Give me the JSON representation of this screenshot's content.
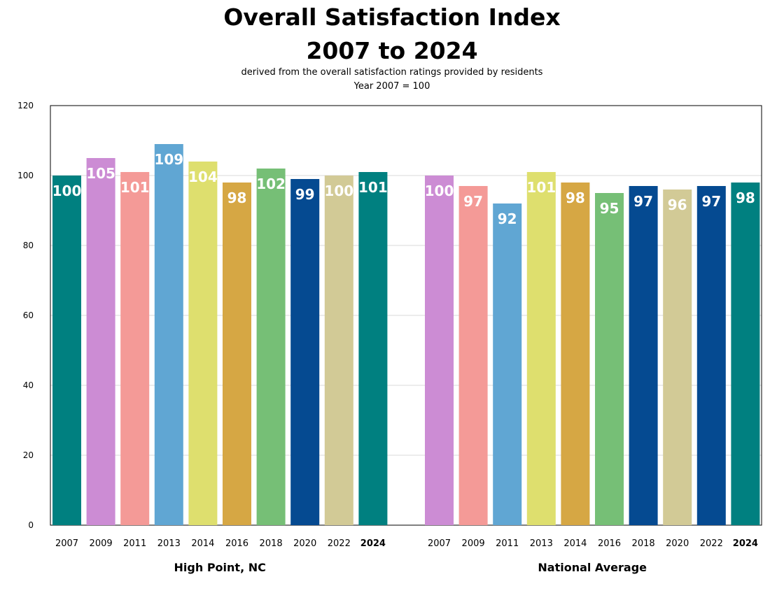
{
  "title_line1": "Overall Satisfaction Index",
  "title_line2": "2007 to 2024",
  "subtitle_line1": "derived from the overall satisfaction ratings provided by residents",
  "subtitle_line2": "Year 2007 = 100",
  "chart_data": {
    "type": "bar",
    "ylim": [
      0,
      120
    ],
    "yticks": [
      0,
      20,
      40,
      60,
      80,
      100,
      120
    ],
    "grid": true,
    "groups": [
      {
        "name": "High Point, NC",
        "categories": [
          "2007",
          "2009",
          "2011",
          "2013",
          "2014",
          "2016",
          "2018",
          "2020",
          "2022",
          "2024"
        ],
        "values": [
          100,
          105,
          101,
          109,
          104,
          98,
          102,
          99,
          100,
          101
        ],
        "colors": [
          "#008080",
          "#cc8cd4",
          "#f49a97",
          "#60a6d3",
          "#dedf6e",
          "#d6a744",
          "#76bf76",
          "#054a91",
          "#d2ca96",
          "#008080"
        ]
      },
      {
        "name": "National Average",
        "categories": [
          "2007",
          "2009",
          "2011",
          "2013",
          "2014",
          "2016",
          "2018",
          "2020",
          "2022",
          "2024"
        ],
        "values": [
          100,
          97,
          92,
          101,
          98,
          95,
          97,
          96,
          97,
          98
        ],
        "colors": [
          "#cc8cd4",
          "#f49a97",
          "#60a6d3",
          "#dedf6e",
          "#d6a744",
          "#76bf76",
          "#054a91",
          "#d2ca96",
          "#054a91",
          "#008080"
        ]
      }
    ],
    "bold_category": "2024"
  }
}
